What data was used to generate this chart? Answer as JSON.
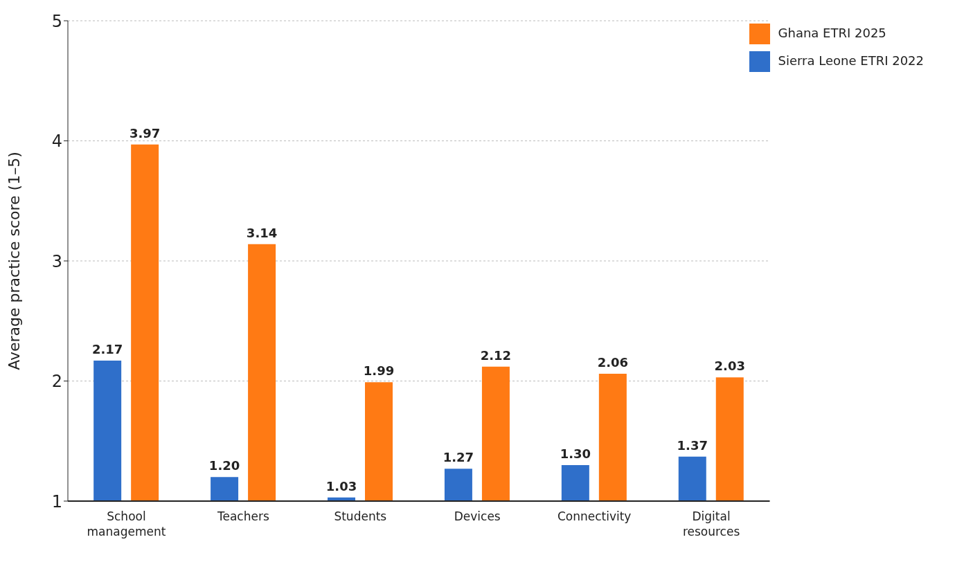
{
  "chart_data": {
    "type": "bar",
    "ylabel": "Average practice score (1–5)",
    "categories": [
      "School management",
      "Teachers",
      "Students",
      "Devices",
      "Connectivity",
      "Digital resources"
    ],
    "series": [
      {
        "name": "Sierra Leone ETRI 2022",
        "color": "#2f6fca",
        "values": [
          2.17,
          1.2,
          1.03,
          1.27,
          1.3,
          1.37
        ],
        "value_labels": [
          "2.17",
          "1.20",
          "1.03",
          "1.27",
          "1.30",
          "1.37"
        ]
      },
      {
        "name": "Ghana ETRI 2025",
        "color": "#ff7a14",
        "values": [
          3.97,
          3.14,
          1.99,
          2.12,
          2.06,
          2.03
        ],
        "value_labels": [
          "3.97",
          "3.14",
          "1.99",
          "2.12",
          "2.06",
          "2.03"
        ]
      }
    ],
    "ylim": [
      1,
      5
    ],
    "yticks": [
      1,
      2,
      3,
      4,
      5
    ],
    "grid": "y",
    "legend": "top right"
  }
}
